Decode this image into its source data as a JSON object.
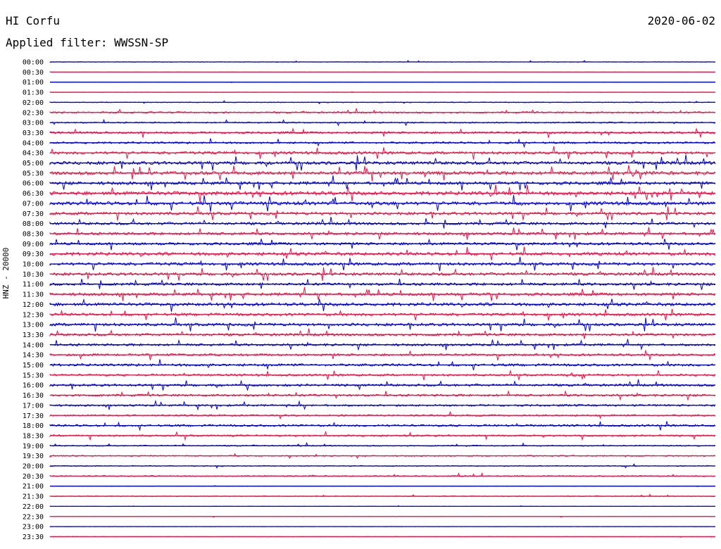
{
  "header": {
    "station": "HI Corfu",
    "date": "2020-06-02",
    "filter_label": "Applied filter: WWSSN-SP"
  },
  "chart_data": {
    "type": "line",
    "title": "HI Corfu",
    "ylabel": "HNZ - 20000",
    "row_labels": [
      "00:00",
      "00:30",
      "01:00",
      "01:30",
      "02:00",
      "02:30",
      "03:00",
      "03:30",
      "04:00",
      "04:30",
      "05:00",
      "05:30",
      "06:00",
      "06:30",
      "07:00",
      "07:30",
      "08:00",
      "08:30",
      "09:00",
      "09:30",
      "10:00",
      "10:30",
      "11:00",
      "11:30",
      "12:00",
      "12:30",
      "13:00",
      "13:30",
      "14:00",
      "14:30",
      "15:00",
      "15:30",
      "16:00",
      "16:30",
      "17:00",
      "17:30",
      "18:00",
      "18:30",
      "19:00",
      "19:30",
      "20:00",
      "20:30",
      "21:00",
      "21:30",
      "22:00",
      "22:30",
      "23:00",
      "23:30"
    ],
    "activity": [
      0.15,
      0.05,
      0.08,
      0.08,
      0.2,
      0.4,
      0.35,
      0.55,
      0.5,
      0.7,
      0.85,
      0.9,
      0.8,
      0.95,
      0.9,
      0.75,
      0.7,
      0.7,
      0.7,
      0.8,
      0.75,
      0.75,
      0.7,
      0.75,
      0.8,
      0.7,
      0.75,
      0.65,
      0.6,
      0.6,
      0.65,
      0.55,
      0.6,
      0.55,
      0.5,
      0.45,
      0.55,
      0.45,
      0.3,
      0.3,
      0.25,
      0.3,
      0.1,
      0.2,
      0.08,
      0.1,
      0.08,
      0.08
    ],
    "series_colors": [
      "#0000dd",
      "#ee1144"
    ]
  }
}
